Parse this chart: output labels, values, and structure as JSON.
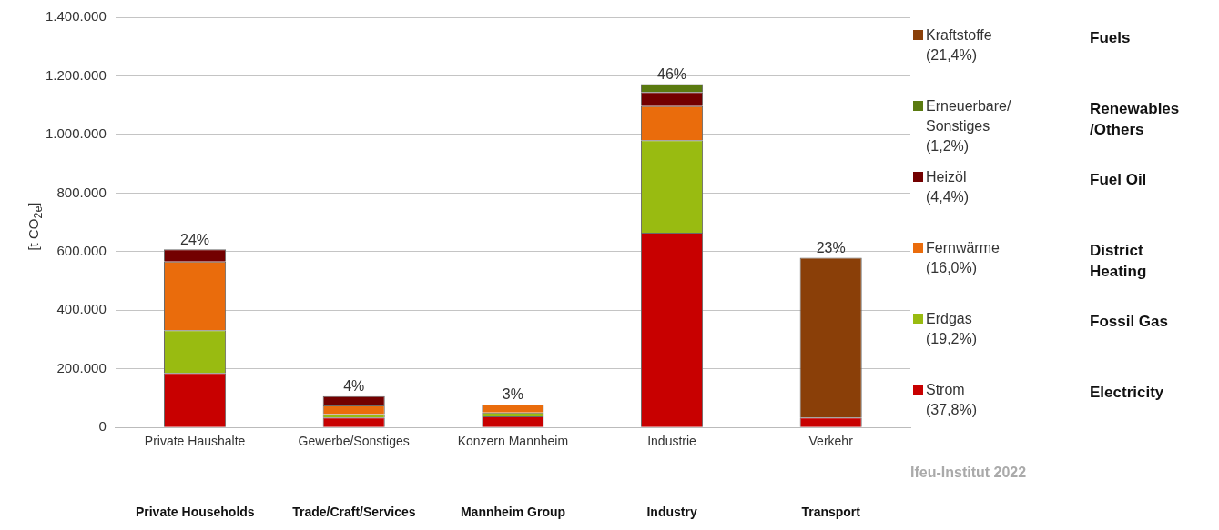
{
  "chart_data": {
    "type": "bar",
    "stacked": true,
    "ylabel": "[t CO$_{2e}$]",
    "categories": [
      "Private Haushalte",
      "Gewerbe/Sonstiges",
      "Konzern Mannheim",
      "Industrie",
      "Verkehr"
    ],
    "series": [
      {
        "name": "Strom\n(37,8%)",
        "color": "#c80000",
        "values": [
          186000,
          34000,
          38000,
          665000,
          34000
        ]
      },
      {
        "name": "Erdgas\n(19,2%)",
        "color": "#99bb11",
        "values": [
          146000,
          12000,
          13000,
          315000,
          null
        ]
      },
      {
        "name": "Fernwärme\n(16,0%)",
        "color": "#ea6c0c",
        "values": [
          234000,
          29000,
          27000,
          117000,
          null
        ]
      },
      {
        "name": "Heizöl\n(4,4%)",
        "color": "#730000",
        "values": [
          42000,
          32000,
          null,
          48000,
          null
        ]
      },
      {
        "name": "Erneuerbare/\nSonstiges\n(1,2%)",
        "color": "#5a7a10",
        "values": [
          null,
          null,
          null,
          27000,
          null
        ]
      },
      {
        "name": "Kraftstoffe\n(21,4%)",
        "color": "#8a3f08",
        "values": [
          null,
          null,
          null,
          null,
          545000
        ]
      }
    ],
    "ylim": [
      0,
      1400000
    ],
    "yticks": [
      {
        "value": 0,
        "label": "0"
      },
      {
        "value": 200000,
        "label": "200.000"
      },
      {
        "value": 400000,
        "label": "400.000"
      },
      {
        "value": 600000,
        "label": "600.000"
      },
      {
        "value": 800000,
        "label": "800.000"
      },
      {
        "value": 1000000,
        "label": "1.000.000"
      },
      {
        "value": 1200000,
        "label": "1.200.000"
      },
      {
        "value": 1400000,
        "label": "1.400.000"
      }
    ],
    "grid": "y",
    "legend": "right",
    "annotations": [
      "Fuels",
      "Renewables /Others",
      "Fuel Oil",
      "District Heating",
      "Fossil Gas",
      "Electricity",
      "Private Households",
      "Trade/Craft/Services",
      "Mannheim Group",
      "Industry",
      "Transport",
      "Ifeu-Institut 2022",
      {
        "text": "24%",
        "x": "Private Haushalte",
        "y": 608000
      },
      {
        "text": "4%",
        "x": "Gewerbe/Sonstiges",
        "y": 107000
      },
      {
        "text": "3%",
        "x": "Konzern Mannheim",
        "y": 78000
      },
      {
        "text": "46%",
        "x": "Industrie",
        "y": 1172000
      },
      {
        "text": "23%",
        "x": "Verkehr",
        "y": 579000
      }
    ]
  }
}
